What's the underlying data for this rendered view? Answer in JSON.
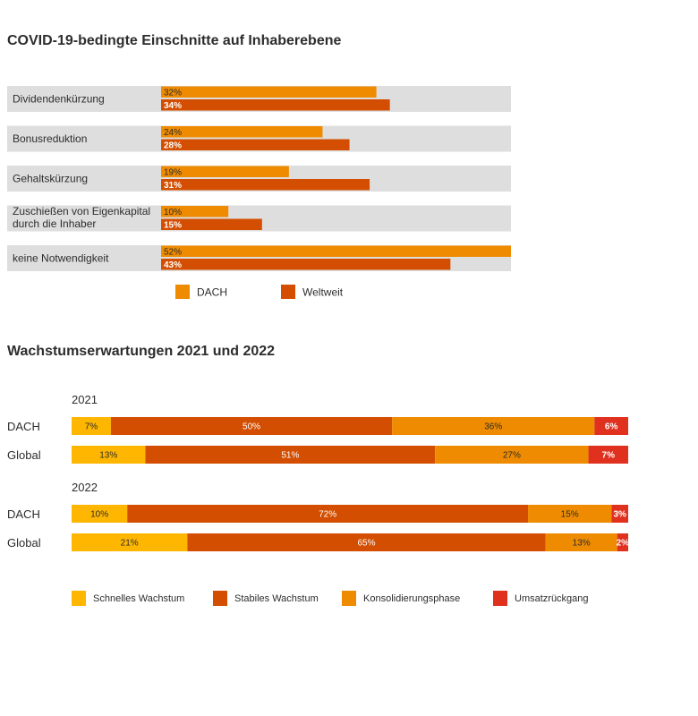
{
  "colors": {
    "dach": "#ee8b00",
    "weltweit": "#d34e00",
    "band": "#dedede",
    "schnelles": "#ffb600",
    "stabiles": "#d34e00",
    "konsolidierung": "#ee8b00",
    "rueckgang": "#e0301e"
  },
  "chart_data": [
    {
      "type": "bar",
      "orientation": "horizontal",
      "title": "COVID-19-bedingte Einschnitte auf Inhaberebene",
      "categories": [
        [
          "Dividendenkürzung"
        ],
        [
          "Bonusreduktion"
        ],
        [
          "Gehaltskürzung"
        ],
        [
          "Zuschießen von Eigenkapital",
          "durch die Inhaber"
        ],
        [
          "keine Notwendigkeit"
        ]
      ],
      "series": [
        {
          "name": "DACH",
          "values": [
            32,
            24,
            19,
            10,
            52
          ],
          "labels": [
            "32%",
            "24%",
            "19%",
            "10%",
            "52%"
          ]
        },
        {
          "name": "Weltweit",
          "values": [
            34,
            28,
            31,
            15,
            43
          ],
          "labels": [
            "34%",
            "28%",
            "31%",
            "15%",
            "43%"
          ]
        }
      ],
      "xlim": [
        0,
        52
      ],
      "legend": "bottom"
    },
    {
      "type": "bar",
      "orientation": "horizontal",
      "stacked": true,
      "title": "Wachstumserwartungen 2021 und 2022",
      "groups": [
        {
          "year": "2021",
          "rows": [
            {
              "label": "DACH",
              "values": [
                7,
                50,
                36,
                6
              ],
              "labels": [
                "7%",
                "50%",
                "36%",
                "6%"
              ]
            },
            {
              "label": "Global",
              "values": [
                13,
                51,
                27,
                7
              ],
              "labels": [
                "13%",
                "51%",
                "27%",
                "7%"
              ]
            }
          ]
        },
        {
          "year": "2022",
          "rows": [
            {
              "label": "DACH",
              "values": [
                10,
                72,
                15,
                3
              ],
              "labels": [
                "10%",
                "72%",
                "15%",
                "3%"
              ]
            },
            {
              "label": "Global",
              "values": [
                21,
                65,
                13,
                2
              ],
              "labels": [
                "21%",
                "65%",
                "13%",
                "2%"
              ]
            }
          ]
        }
      ],
      "series_names": [
        "Schnelles Wachstum",
        "Stabiles Wachstum",
        "Konsolidierungsphase",
        "Umsatzrückgang"
      ],
      "legend": "bottom"
    }
  ]
}
